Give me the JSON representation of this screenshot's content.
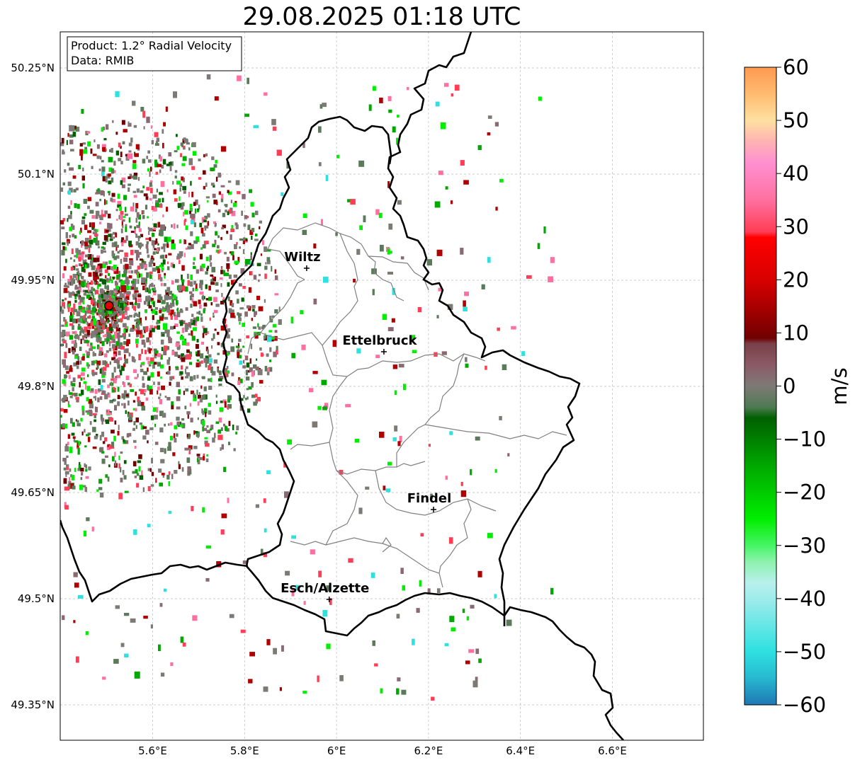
{
  "title": "29.08.2025 01:18 UTC",
  "info_box": {
    "product": "Product: 1.2° Radial Velocity",
    "data": "Data: RMIB"
  },
  "map": {
    "lon_range": [
      5.4,
      6.8
    ],
    "lat_range": [
      49.3,
      50.3
    ],
    "x_ticks": [
      {
        "value": 5.6,
        "label": "5.6°E"
      },
      {
        "value": 5.8,
        "label": "5.8°E"
      },
      {
        "value": 6.0,
        "label": "6°E"
      },
      {
        "value": 6.2,
        "label": "6.2°E"
      },
      {
        "value": 6.4,
        "label": "6.4°E"
      },
      {
        "value": 6.6,
        "label": "6.6°E"
      }
    ],
    "y_ticks": [
      {
        "value": 50.25,
        "label": "50.25°N"
      },
      {
        "value": 50.1,
        "label": "50.1°N"
      },
      {
        "value": 49.95,
        "label": "49.95°N"
      },
      {
        "value": 49.8,
        "label": "49.8°N"
      },
      {
        "value": 49.65,
        "label": "49.65°N"
      },
      {
        "value": 49.5,
        "label": "49.5°N"
      },
      {
        "value": 49.35,
        "label": "49.35°N"
      }
    ],
    "radar_site": {
      "lon": 5.505,
      "lat": 49.914
    },
    "cities": [
      {
        "name": "Wiltz",
        "lon": 5.935,
        "lat": 49.967
      },
      {
        "name": "Ettelbruck",
        "lon": 6.103,
        "lat": 49.849
      },
      {
        "name": "Findel",
        "lon": 6.211,
        "lat": 49.626
      },
      {
        "name": "Esch/Alzette",
        "lon": 5.984,
        "lat": 49.499
      }
    ]
  },
  "colorbar": {
    "label": "m/s",
    "min": -60,
    "max": 60,
    "ticks": [
      {
        "value": 60,
        "label": "60"
      },
      {
        "value": 50,
        "label": "50"
      },
      {
        "value": 40,
        "label": "40"
      },
      {
        "value": 30,
        "label": "30"
      },
      {
        "value": 20,
        "label": "20"
      },
      {
        "value": 10,
        "label": "10"
      },
      {
        "value": 0,
        "label": "0"
      },
      {
        "value": -10,
        "label": "−10"
      },
      {
        "value": -20,
        "label": "−20"
      },
      {
        "value": -30,
        "label": "−30"
      },
      {
        "value": -40,
        "label": "−40"
      },
      {
        "value": -50,
        "label": "−50"
      },
      {
        "value": -60,
        "label": "−60"
      }
    ],
    "color_stops": [
      {
        "value": -60,
        "color": "#1f77b4"
      },
      {
        "value": -55,
        "color": "#27b8d0"
      },
      {
        "value": -50,
        "color": "#2ee0e0"
      },
      {
        "value": -45,
        "color": "#66e6e6"
      },
      {
        "value": -40,
        "color": "#a0eceb"
      },
      {
        "value": -37,
        "color": "#b8f0ec"
      },
      {
        "value": -33,
        "color": "#8cf2ac"
      },
      {
        "value": -30,
        "color": "#45f565"
      },
      {
        "value": -25,
        "color": "#00ee00"
      },
      {
        "value": -15,
        "color": "#00a800"
      },
      {
        "value": -6,
        "color": "#006000"
      },
      {
        "value": -4,
        "color": "#4e7a52"
      },
      {
        "value": 0,
        "color": "#7d7a76"
      },
      {
        "value": 4,
        "color": "#8a5a66"
      },
      {
        "value": 8,
        "color": "#7a4048"
      },
      {
        "value": 9,
        "color": "#700000"
      },
      {
        "value": 20,
        "color": "#d80000"
      },
      {
        "value": 28,
        "color": "#ff0000"
      },
      {
        "value": 29,
        "color": "#ff3d55"
      },
      {
        "value": 35,
        "color": "#ff70a0"
      },
      {
        "value": 42,
        "color": "#ff90d0"
      },
      {
        "value": 46,
        "color": "#ffb3b3"
      },
      {
        "value": 50,
        "color": "#ffe0a0"
      },
      {
        "value": 55,
        "color": "#ffbb70"
      },
      {
        "value": 60,
        "color": "#ff9a50"
      }
    ]
  }
}
